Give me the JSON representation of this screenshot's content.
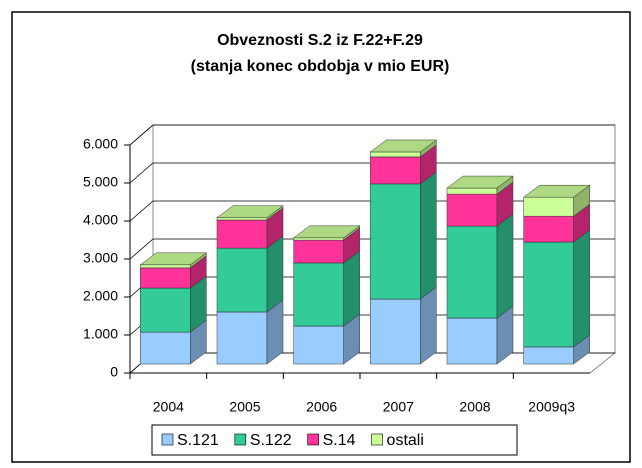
{
  "chart_data": {
    "type": "bar3d_stacked",
    "title": "Obveznosti S.2 iz F.22+F.29",
    "subtitle": "(stanja konec obdobja v mio EUR)",
    "categories": [
      "2004",
      "2005",
      "2006",
      "2007",
      "2008",
      "2009q3"
    ],
    "series": [
      {
        "name": "S.121",
        "color": "#99ccff",
        "values": [
          840,
          1370,
          1000,
          1710,
          1210,
          450
        ]
      },
      {
        "name": "S.122",
        "color": "#33cc99",
        "values": [
          1160,
          1680,
          1660,
          3030,
          2420,
          2760
        ]
      },
      {
        "name": "S.14",
        "color": "#ff3399",
        "values": [
          530,
          740,
          600,
          710,
          840,
          680
        ]
      },
      {
        "name": "ostali",
        "color": "#ccff99",
        "values": [
          80,
          60,
          60,
          130,
          160,
          500
        ]
      }
    ],
    "ylim": [
      0,
      6000
    ],
    "yticks": [
      0,
      {
        "value": 1000,
        "label": "1.000"
      },
      {
        "value": 2000,
        "label": "2.000"
      },
      {
        "value": 3000,
        "label": "3.000"
      },
      {
        "value": 4000,
        "label": "4.000"
      },
      {
        "value": 5000,
        "label": "5.000"
      },
      {
        "value": 6000,
        "label": "6.000"
      }
    ],
    "grid": true,
    "legend": "bottom"
  }
}
